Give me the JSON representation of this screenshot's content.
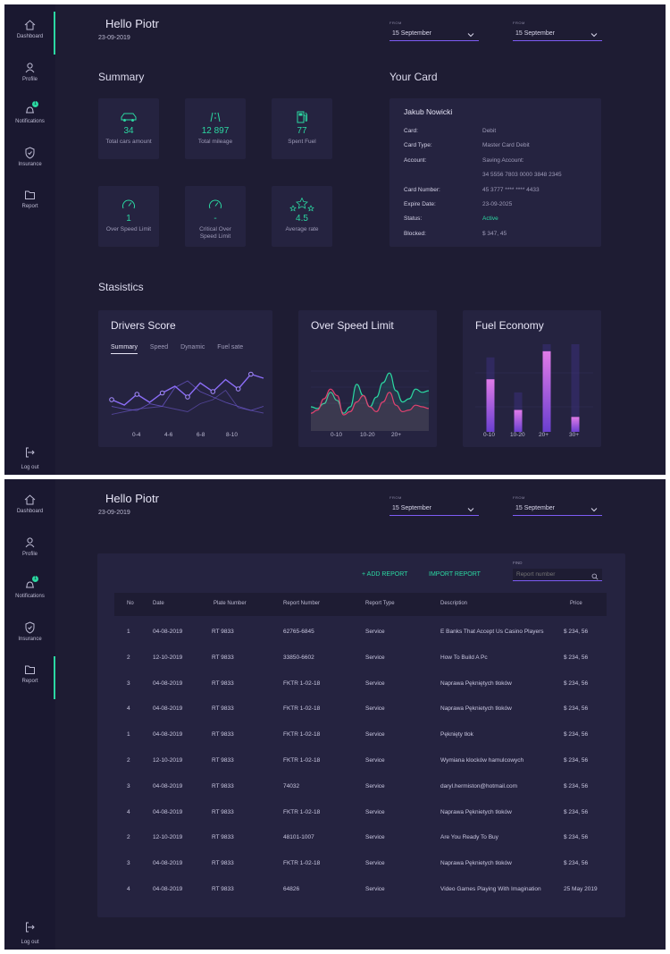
{
  "nav": {
    "items": [
      {
        "label": "Dashboard",
        "icon": "home-icon"
      },
      {
        "label": "Profile",
        "icon": "user-icon"
      },
      {
        "label": "Notifications",
        "icon": "bell-icon",
        "badge": "1"
      },
      {
        "label": "Insurance",
        "icon": "shield-icon"
      },
      {
        "label": "Report",
        "icon": "folder-icon"
      }
    ],
    "logout": "Log out"
  },
  "header": {
    "greeting": "Hello Piotr",
    "date": "23-09-2019",
    "from1_caption": "FROM",
    "from1_value": "15 September",
    "from2_caption": "FROM",
    "from2_value": "15 September"
  },
  "summary": {
    "title": "Summary",
    "tiles": [
      {
        "value": "34",
        "label": "Total cars amount",
        "icon": "car-icon"
      },
      {
        "value": "12 897",
        "label": "Total mileage",
        "icon": "road-icon"
      },
      {
        "value": "77",
        "label": "Spent Fuel",
        "icon": "fuel-icon"
      },
      {
        "value": "1",
        "label": "Over Speed Limit",
        "icon": "speedometer-icon"
      },
      {
        "value": "-",
        "label": "Critical Over Speed Limit",
        "icon": "speedometer-icon"
      },
      {
        "value": "4.5",
        "label": "Average rate",
        "icon": "stars-icon"
      }
    ]
  },
  "card": {
    "title": "Your Card",
    "name": "Jakub Nowicki",
    "rows": [
      {
        "label": "Card:",
        "value": "Debit"
      },
      {
        "label": "Card Type:",
        "value": "Master Card Debit"
      },
      {
        "label": "Account:",
        "value": "Saving Account:"
      },
      {
        "label": "",
        "value": "34 5556 7803 0000 3848 2345"
      },
      {
        "label": "Card Number:",
        "value": "45 3777 **** **** 4433"
      },
      {
        "label": "Expire Date:",
        "value": "23-09-2025"
      },
      {
        "label": "Status:",
        "value": "Active"
      },
      {
        "label": "Blocked:",
        "value": "$ 347, 45"
      }
    ]
  },
  "statistics": {
    "title": "Stasistics",
    "drivers_score": {
      "title": "Drivers Score",
      "tabs": [
        "Summary",
        "Speed",
        "Dynamic",
        "Fuel sate"
      ],
      "active_tab": "Summary"
    },
    "over_speed": {
      "title": "Over Speed Limit"
    },
    "fuel_economy": {
      "title": "Fuel Economy"
    }
  },
  "chart_data": [
    {
      "type": "line",
      "title": "Drivers Score",
      "categories": [
        "0-4",
        "4-6",
        "6-8",
        "8-10"
      ],
      "x": [
        0,
        1,
        2,
        3,
        4,
        5,
        6,
        7,
        8,
        9,
        10,
        11,
        12
      ],
      "series": [
        {
          "values": [
            40,
            32,
            48,
            36,
            50,
            60,
            44,
            65,
            52,
            70,
            56,
            78,
            72
          ]
        },
        {
          "values": [
            30,
            26,
            24,
            34,
            30,
            58,
            68,
            52,
            44,
            36,
            30,
            24,
            30
          ]
        },
        {
          "values": [
            18,
            22,
            26,
            28,
            30,
            26,
            22,
            34,
            40,
            54,
            28,
            24,
            20
          ]
        }
      ],
      "colors": [
        "#8b6df7",
        "#6a56c9",
        "#5b4ba8"
      ],
      "grid": false
    },
    {
      "type": "area",
      "title": "Over Speed Limit",
      "categories": [
        "0-10",
        "10-20",
        "20+"
      ],
      "x": [
        0,
        1,
        2,
        3,
        4,
        5,
        6,
        7,
        8,
        9,
        10,
        11,
        12,
        13,
        14,
        15,
        16,
        17,
        18
      ],
      "series": [
        {
          "values": [
            30,
            28,
            34,
            48,
            38,
            22,
            30,
            58,
            44,
            30,
            42,
            60,
            72,
            50,
            36,
            40,
            52,
            48,
            50
          ]
        },
        {
          "values": [
            22,
            26,
            40,
            52,
            44,
            20,
            24,
            36,
            44,
            30,
            24,
            36,
            48,
            32,
            24,
            26,
            32,
            30,
            28
          ]
        }
      ],
      "colors": [
        "#2bd8a2",
        "#e0416f"
      ],
      "grid": true
    },
    {
      "type": "bar",
      "title": "Fuel Economy",
      "categories": [
        "0-10",
        "10-20",
        "20+",
        "30+"
      ],
      "series": [
        {
          "name": "value",
          "values": [
            60,
            25,
            92,
            17
          ]
        },
        {
          "name": "track",
          "values": [
            85,
            45,
            100,
            100
          ]
        }
      ],
      "colors": [
        "#c65bd8",
        "#3a2f78"
      ],
      "ylim": [
        0,
        100
      ]
    }
  ],
  "reports": {
    "add_label": "+ ADD REPORT",
    "import_label": "IMPORT  REPORT",
    "find_caption": "FIND",
    "find_placeholder": "Report number",
    "columns": [
      "No",
      "Date",
      "Plate Number",
      "Report Number",
      "Report Type",
      "Description",
      "Price"
    ],
    "rows": [
      {
        "no": "1",
        "date": "04-08-2019",
        "plate": "RT 9833",
        "report": "62765-6845",
        "type": "Service",
        "desc": "E Banks That Accept Us Casino Players",
        "price": "$ 234, 56"
      },
      {
        "no": "2",
        "date": "12-10-2019",
        "plate": "RT 9833",
        "report": "33850-6602",
        "type": "Service",
        "desc": "How To Build A Pc",
        "price": "$ 234, 56"
      },
      {
        "no": "3",
        "date": "04-08-2019",
        "plate": "RT 9833",
        "report": "FKTR 1-02-18",
        "type": "Service",
        "desc": "Naprawa Pękniętych tłoków",
        "price": "$ 234, 56"
      },
      {
        "no": "4",
        "date": "04-08-2019",
        "plate": "RT 9833",
        "report": "FKTR 1-02-18",
        "type": "Service",
        "desc": "Naprawa Pęknietych tłoków",
        "price": "$ 234, 56"
      },
      {
        "no": "1",
        "date": "04-08-2019",
        "plate": "RT 9833",
        "report": "FKTR 1-02-18",
        "type": "Service",
        "desc": "Pęknięty tłok",
        "price": "$ 234, 56"
      },
      {
        "no": "2",
        "date": "12-10-2019",
        "plate": "RT 9833",
        "report": "FKTR 1-02-18",
        "type": "Service",
        "desc": " Wymiana klocków hamulcowych",
        "price": "$ 234, 56"
      },
      {
        "no": "3",
        "date": "04-08-2019",
        "plate": "RT 9833",
        "report": "74032",
        "type": "Service",
        "desc": "daryl.hermiston@hotmail.com",
        "price": "$ 234, 56"
      },
      {
        "no": "4",
        "date": "04-08-2019",
        "plate": "RT 9833",
        "report": "FKTR 1-02-18",
        "type": "Service",
        "desc": "Naprawa Pęknietych tłoków",
        "price": "$ 234, 56"
      },
      {
        "no": "2",
        "date": "12-10-2019",
        "plate": "RT 9833",
        "report": "48101-1007",
        "type": "Service",
        "desc": "Are You Ready To Buy",
        "price": "$ 234, 56"
      },
      {
        "no": "3",
        "date": "04-08-2019",
        "plate": "RT 9833",
        "report": "FKTR 1-02-18",
        "type": "Service",
        "desc": "Naprawa Pęknietych tłoków",
        "price": "$ 234, 56"
      },
      {
        "no": "4",
        "date": "04-08-2019",
        "plate": "RT 9833",
        "report": "64826",
        "type": "Service",
        "desc": "Video Games Playing With Imagination",
        "price": "25 May 2019"
      }
    ]
  },
  "colors": {
    "background": "#1e1c33",
    "panel": "#252340",
    "accent": "#2bd8a2",
    "purple": "#7d5cf5"
  }
}
